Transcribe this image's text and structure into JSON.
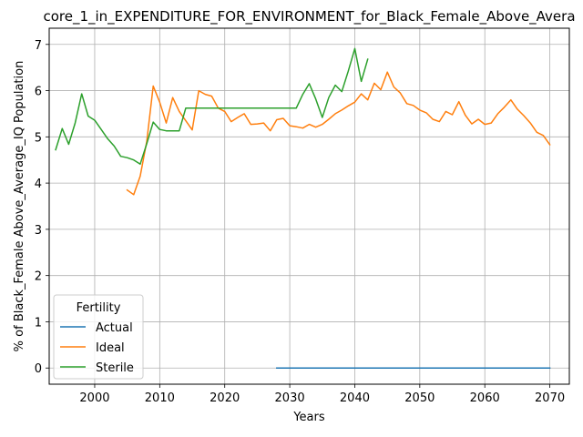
{
  "chart_data": {
    "type": "line",
    "title": "core_1_in_EXPENDITURE_FOR_ENVIRONMENT_for_Black_Female_Above_Avera",
    "xlabel": "Years",
    "ylabel": "% of Black_Female Above_Average_IQ Population",
    "xlim": [
      1993,
      2073
    ],
    "ylim": [
      -0.35,
      7.35
    ],
    "xticks": [
      2000,
      2010,
      2020,
      2030,
      2040,
      2050,
      2060,
      2070
    ],
    "yticks": [
      0,
      1,
      2,
      3,
      4,
      5,
      6,
      7
    ],
    "grid": true,
    "legend": {
      "title": "Fertility",
      "placement": "lower-left"
    },
    "series": [
      {
        "name": "Actual",
        "color": "#1f77b4",
        "x": [
          2028,
          2070
        ],
        "y": [
          0,
          0
        ]
      },
      {
        "name": "Ideal",
        "color": "#ff7f0e",
        "x": [
          2005,
          2006,
          2007,
          2008,
          2009,
          2010,
          2011,
          2012,
          2013,
          2014,
          2015,
          2016,
          2017,
          2018,
          2019,
          2020,
          2021,
          2022,
          2023,
          2024,
          2025,
          2026,
          2027,
          2028,
          2029,
          2030,
          2031,
          2032,
          2033,
          2034,
          2035,
          2036,
          2037,
          2038,
          2039,
          2040,
          2041,
          2042,
          2043,
          2044,
          2045,
          2046,
          2047,
          2048,
          2049,
          2050,
          2051,
          2052,
          2053,
          2054,
          2055,
          2056,
          2057,
          2058,
          2059,
          2060,
          2061,
          2062,
          2063,
          2064,
          2065,
          2066,
          2067,
          2068,
          2069,
          2070
        ],
        "y": [
          3.85,
          3.75,
          4.15,
          4.9,
          6.1,
          5.75,
          5.3,
          5.85,
          5.55,
          5.35,
          5.15,
          6.0,
          5.92,
          5.88,
          5.62,
          5.55,
          5.33,
          5.42,
          5.5,
          5.27,
          5.28,
          5.3,
          5.13,
          5.37,
          5.4,
          5.24,
          5.22,
          5.19,
          5.27,
          5.21,
          5.27,
          5.38,
          5.5,
          5.58,
          5.67,
          5.75,
          5.93,
          5.8,
          6.16,
          6.02,
          6.4,
          6.08,
          5.95,
          5.72,
          5.68,
          5.58,
          5.52,
          5.38,
          5.33,
          5.55,
          5.48,
          5.76,
          5.47,
          5.28,
          5.38,
          5.27,
          5.3,
          5.5,
          5.64,
          5.8,
          5.6,
          5.46,
          5.3,
          5.1,
          5.03,
          4.83
        ]
      },
      {
        "name": "Sterile",
        "color": "#2ca02c",
        "x": [
          1994,
          1995,
          1996,
          1997,
          1998,
          1999,
          2000,
          2001,
          2002,
          2003,
          2004,
          2005,
          2006,
          2007,
          2008,
          2009,
          2010,
          2011,
          2012,
          2013,
          2014,
          2015,
          2016,
          2017,
          2018,
          2019,
          2020,
          2021,
          2022,
          2023,
          2024,
          2025,
          2026,
          2027,
          2028,
          2029,
          2030,
          2031,
          2032,
          2033,
          2034,
          2035,
          2036,
          2037,
          2038,
          2039,
          2040,
          2041,
          2042
        ],
        "y": [
          4.72,
          5.18,
          4.84,
          5.3,
          5.93,
          5.45,
          5.36,
          5.16,
          4.96,
          4.8,
          4.58,
          4.55,
          4.5,
          4.41,
          4.85,
          5.32,
          5.16,
          5.13,
          5.13,
          5.13,
          5.62,
          5.62,
          5.62,
          5.62,
          5.62,
          5.62,
          5.62,
          5.62,
          5.62,
          5.62,
          5.62,
          5.62,
          5.62,
          5.62,
          5.62,
          5.62,
          5.62,
          5.62,
          5.92,
          6.15,
          5.82,
          5.42,
          5.85,
          6.12,
          5.98,
          6.42,
          6.91,
          6.2,
          6.68
        ]
      }
    ]
  }
}
